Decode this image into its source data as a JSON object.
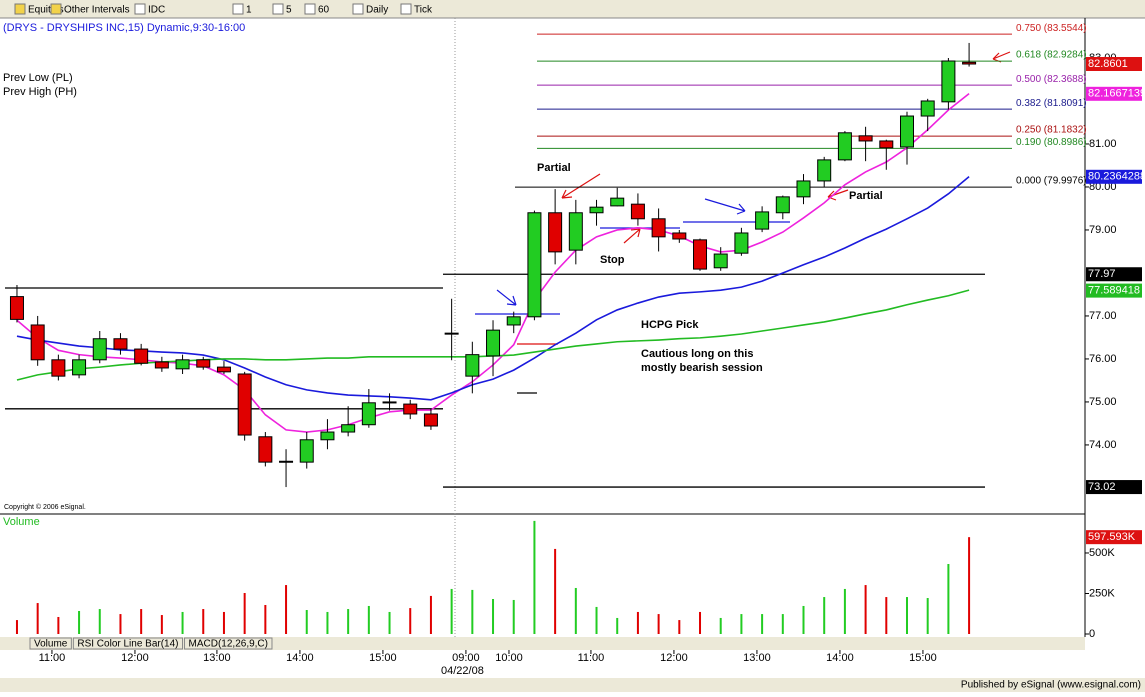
{
  "toolbar": {
    "items": [
      "Equities",
      "Other Intervals",
      "IDC",
      "1",
      "5",
      "60",
      "Daily",
      "Tick"
    ]
  },
  "tabs": [
    "Volume",
    "RSI Color Line Bar(14)",
    "MACD(12,26,9,C)"
  ],
  "date_label": "04/22/08",
  "footer": "Published by eSignal (www.esignal.com)",
  "chart_data": [
    {
      "type": "candlestick",
      "title": "(DRYS - DRYSHIPS INC,15) Dynamic,9:30-16:00",
      "legend_texts": [
        "Prev Low (PL)",
        "Prev High (PH)"
      ],
      "copyright": "Copyright © 2006 eSignal.",
      "annotations": [
        "Partial",
        "Stop",
        "Partial",
        "HCPG Pick",
        "Cautious long on this",
        "mostly bearish session"
      ],
      "up_color": "#22cc22",
      "down_color": "#e00000",
      "xlim": [
        -0.82,
        51.6
      ],
      "xticks": [
        {
          "value": 1.69,
          "label": "11:00"
        },
        {
          "value": 5.7,
          "label": "12:00"
        },
        {
          "value": 9.66,
          "label": "13:00"
        },
        {
          "value": 13.67,
          "label": "14:00"
        },
        {
          "value": 17.68,
          "label": "15:00"
        },
        {
          "value": 21.69,
          "label": "09:00"
        },
        {
          "value": 23.77,
          "label": "10:00"
        },
        {
          "value": 27.73,
          "label": "11:00"
        },
        {
          "value": 31.74,
          "label": "12:00"
        },
        {
          "value": 35.75,
          "label": "13:00"
        },
        {
          "value": 39.76,
          "label": "14:00"
        },
        {
          "value": 43.77,
          "label": "15:00"
        }
      ],
      "ylim": [
        72.44,
        83.93
      ],
      "yticks": [
        {
          "value": 74,
          "label": "74.00"
        },
        {
          "value": 75,
          "label": "75.00"
        },
        {
          "value": 76,
          "label": "76.00"
        },
        {
          "value": 77,
          "label": "77.00"
        },
        {
          "value": 79,
          "label": "79.00"
        },
        {
          "value": 80,
          "label": "80.00"
        },
        {
          "value": 81,
          "label": "81.00"
        },
        {
          "value": 83,
          "label": "83.00"
        }
      ],
      "open": [
        77.45,
        76.79,
        75.98,
        75.63,
        75.98,
        76.47,
        76.23,
        75.93,
        75.77,
        75.98,
        75.81,
        75.65,
        74.19,
        73.62,
        73.6,
        74.12,
        74.3,
        74.47,
        74.98,
        74.95,
        74.72,
        76.6,
        75.6,
        76.07,
        76.79,
        76.98,
        79.4,
        78.53,
        79.4,
        79.56,
        79.6,
        79.26,
        78.93,
        78.77,
        78.12,
        78.46,
        79.02,
        79.4,
        79.77,
        80.14,
        80.63,
        81.19,
        81.07,
        80.93,
        81.65,
        81.98,
        82.9
      ],
      "high": [
        77.72,
        77.0,
        76.1,
        76.1,
        76.65,
        76.6,
        76.35,
        76.05,
        76.1,
        76.05,
        75.95,
        75.7,
        74.3,
        73.9,
        74.3,
        74.6,
        74.9,
        75.3,
        75.2,
        75.05,
        74.85,
        77.4,
        76.4,
        76.9,
        77.1,
        79.45,
        79.95,
        79.7,
        79.7,
        79.98,
        79.85,
        79.5,
        79.0,
        78.8,
        78.6,
        79.05,
        79.55,
        79.8,
        80.3,
        80.7,
        81.3,
        81.4,
        81.1,
        81.75,
        82.05,
        83.0,
        83.35
      ],
      "low": [
        76.85,
        75.84,
        75.5,
        75.55,
        75.9,
        76.1,
        75.85,
        75.7,
        75.65,
        75.75,
        75.65,
        74.1,
        73.5,
        73.02,
        73.45,
        73.9,
        74.2,
        74.4,
        74.8,
        74.6,
        74.35,
        75.97,
        75.2,
        75.6,
        76.6,
        76.9,
        78.2,
        78.2,
        79.1,
        79.55,
        79.1,
        78.5,
        78.7,
        78.05,
        78.05,
        78.4,
        78.95,
        79.25,
        79.6,
        80.0,
        80.6,
        80.6,
        80.4,
        80.52,
        81.3,
        81.8,
        82.8
      ],
      "close": [
        76.92,
        75.98,
        75.6,
        75.98,
        76.47,
        76.23,
        75.9,
        75.79,
        75.98,
        75.81,
        75.7,
        74.23,
        73.6,
        73.6,
        74.12,
        74.3,
        74.47,
        74.98,
        75.0,
        74.72,
        74.44,
        76.6,
        76.1,
        76.67,
        76.98,
        79.4,
        78.49,
        79.4,
        79.53,
        79.74,
        79.26,
        78.84,
        78.79,
        78.09,
        78.44,
        78.93,
        79.42,
        79.77,
        80.14,
        80.63,
        81.26,
        81.07,
        80.91,
        81.65,
        82.0,
        82.93,
        82.86
      ],
      "series": [
        {
          "color": "#ee22dd",
          "values": [
            76.9,
            76.49,
            76.2,
            76.1,
            76.05,
            76.02,
            75.98,
            75.93,
            75.9,
            75.84,
            75.63,
            75.28,
            74.7,
            74.35,
            74.3,
            74.35,
            74.47,
            74.63,
            74.77,
            74.81,
            74.81,
            75.16,
            75.47,
            75.86,
            76.33,
            77.37,
            78.02,
            78.53,
            78.84,
            79.0,
            79.05,
            79.0,
            78.86,
            78.63,
            78.49,
            78.53,
            78.72,
            78.95,
            79.28,
            79.63,
            80.05,
            80.35,
            80.58,
            80.91,
            81.33,
            81.79,
            82.17
          ]
        },
        {
          "color": "#1a1adc",
          "values": [
            76.53,
            76.44,
            76.37,
            76.3,
            76.26,
            76.21,
            76.19,
            76.16,
            76.14,
            76.09,
            75.98,
            75.79,
            75.58,
            75.4,
            75.28,
            75.21,
            75.16,
            75.14,
            75.12,
            75.09,
            75.05,
            75.21,
            75.4,
            75.53,
            75.74,
            76.02,
            76.33,
            76.6,
            76.91,
            77.14,
            77.3,
            77.44,
            77.53,
            77.56,
            77.6,
            77.67,
            77.81,
            78.0,
            78.19,
            78.37,
            78.58,
            78.81,
            79.02,
            79.26,
            79.51,
            79.84,
            80.24
          ]
        },
        {
          "color": "#22bb22",
          "values": [
            75.51,
            75.63,
            75.7,
            75.77,
            75.81,
            75.86,
            75.9,
            75.93,
            75.95,
            75.98,
            76.0,
            76.0,
            75.98,
            75.98,
            76.0,
            76.02,
            76.02,
            76.05,
            76.05,
            76.05,
            76.05,
            76.05,
            76.05,
            76.07,
            76.09,
            76.16,
            76.23,
            76.3,
            76.35,
            76.4,
            76.42,
            76.44,
            76.47,
            76.49,
            76.53,
            76.58,
            76.65,
            76.72,
            76.79,
            76.86,
            76.95,
            77.05,
            77.14,
            77.26,
            77.37,
            77.47,
            77.6
          ]
        }
      ],
      "levels": [
        {
          "label": "0.750 (83.5544)",
          "value": 83.5544,
          "color": "#cc2222"
        },
        {
          "label": "0.618 (82.9284)",
          "value": 82.9284,
          "color": "#228822"
        },
        {
          "label": "0.500 (82.3688)",
          "value": 82.3688,
          "color": "#9922aa"
        },
        {
          "label": "0.382 (81.8091)",
          "value": 81.8091,
          "color": "#1a1a8c"
        },
        {
          "label": "0.250 (81.1832)",
          "value": 81.1832,
          "color": "#aa1111"
        },
        {
          "label": "0.190 (80.8986)",
          "value": 80.8986,
          "color": "#228822"
        },
        {
          "label": "0.000 (79.9976)",
          "value": 79.9976,
          "color": "#000000"
        }
      ],
      "lines": [
        77.65,
        74.84,
        77.97,
        73.02
      ],
      "price_tags": [
        {
          "value": 82.8601,
          "label": "82.8601",
          "color": "#dd1111"
        },
        {
          "value": 82.1667139,
          "label": "82.1667139",
          "color": "#ee22dd"
        },
        {
          "value": 80.2364288,
          "label": "80.2364288",
          "color": "#1a1adc"
        },
        {
          "value": 77.97,
          "label": "77.97",
          "color": "#000000"
        },
        {
          "value": 77.589418,
          "label": "77.589418",
          "color": "#22bb22"
        },
        {
          "value": 73.02,
          "label": "73.02",
          "color": "#000000"
        }
      ]
    },
    {
      "type": "bar",
      "title": "Volume",
      "ylim": [
        0,
        722000
      ],
      "yticks": [
        0,
        {
          "value": 250000,
          "label": "250K"
        },
        {
          "value": 500000,
          "label": "500K"
        }
      ],
      "values": [
        86000,
        191000,
        105000,
        142000,
        154000,
        123000,
        154000,
        117000,
        136000,
        154000,
        136000,
        253000,
        179000,
        302000,
        148000,
        136000,
        154000,
        173000,
        136000,
        160000,
        235000,
        278000,
        272000,
        216000,
        210000,
        698000,
        525000,
        284000,
        167000,
        99000,
        136000,
        123000,
        86000,
        136000,
        99000,
        123000,
        123000,
        123000,
        173000,
        228000,
        278000,
        302000,
        228000,
        228000,
        222000,
        432000,
        597593
      ],
      "value_tag": {
        "value": 597593,
        "label": "597.593K",
        "color": "#dd1111"
      }
    }
  ]
}
